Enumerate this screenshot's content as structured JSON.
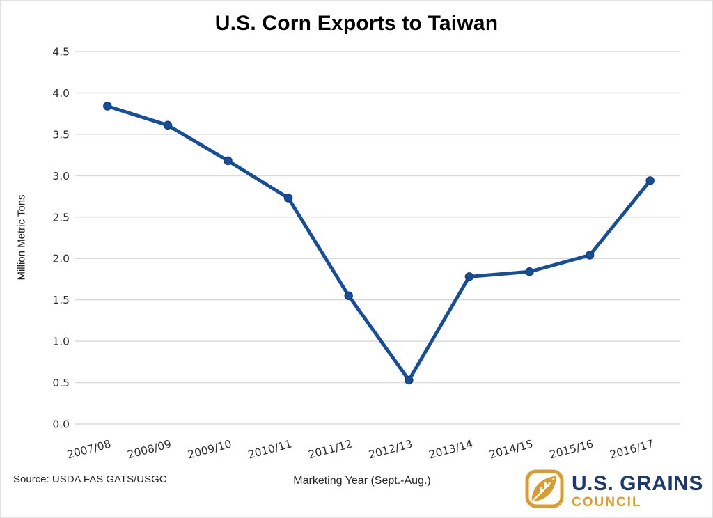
{
  "chart_data": {
    "type": "line",
    "title": "U.S. Corn Exports to Taiwan",
    "categories": [
      "2007/08",
      "2008/09",
      "2009/10",
      "2010/11",
      "2011/12",
      "2012/13",
      "2013/14",
      "2014/15",
      "2015/16",
      "2016/17"
    ],
    "values": [
      3.84,
      3.61,
      3.18,
      2.73,
      1.55,
      0.53,
      1.78,
      1.84,
      2.04,
      2.94
    ],
    "xlabel": "Marketing Year (Sept.-Aug.)",
    "ylabel": "Million Metric Tons",
    "ylim": [
      0,
      4.5
    ],
    "ytick_step": 0.5,
    "ytick_labels": [
      "0.0",
      "0.5",
      "1.0",
      "1.5",
      "2.0",
      "2.5",
      "3.0",
      "3.5",
      "4.0",
      "4.5"
    ],
    "grid": "horizontal",
    "legend": "none",
    "line_color": "#174E9B",
    "marker": "circle"
  },
  "footer": {
    "source": "Source: USDA FAS GATS/USGC"
  },
  "logo": {
    "primary": "U.S. GRAINS",
    "secondary": "COUNCIL",
    "navy": "#1E3A6D",
    "gold": "#DE9B2D"
  },
  "colors": {
    "grid": "#d9d9d9",
    "tick_text": "#2e2e2e",
    "background": "#ffffff"
  }
}
